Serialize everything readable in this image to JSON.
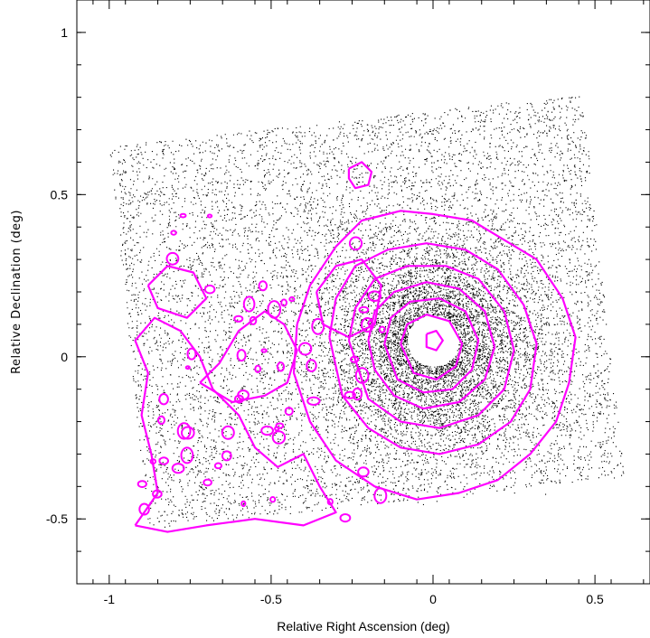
{
  "chart_data": {
    "type": "scatter",
    "title": "",
    "xlabel": "Relative Right Ascension (deg)",
    "ylabel": "Relative Declination (deg)",
    "xlim": [
      1.1,
      -0.67
    ],
    "ylim": [
      -0.7,
      1.1
    ],
    "x_ticks": [
      {
        "value": 1,
        "label": "-1"
      },
      {
        "value": 0.5,
        "label": "-0.5"
      },
      {
        "value": 0,
        "label": "0"
      },
      {
        "value": -0.5,
        "label": "0.5"
      }
    ],
    "y_ticks": [
      {
        "value": 1,
        "label": "1"
      },
      {
        "value": 0.5,
        "label": "0.5"
      },
      {
        "value": 0,
        "label": "0"
      },
      {
        "value": -0.5,
        "label": "-0.5"
      }
    ],
    "grid": false,
    "point_color": "#000000",
    "contour_color": "#ff00ff",
    "field_corners": [
      [
        1.0,
        0.65
      ],
      [
        -0.46,
        0.81
      ],
      [
        -0.59,
        -0.37
      ],
      [
        0.88,
        -0.53
      ]
    ],
    "cluster_center": [
      0.0,
      0.05
    ],
    "contours": [
      {
        "level": "outer-west-1",
        "points": [
          [
            0.92,
            -0.52
          ],
          [
            0.85,
            -0.42
          ],
          [
            0.87,
            -0.3
          ],
          [
            0.9,
            -0.18
          ],
          [
            0.88,
            -0.05
          ],
          [
            0.92,
            0.05
          ],
          [
            0.86,
            0.12
          ],
          [
            0.78,
            0.08
          ],
          [
            0.72,
            0.0
          ],
          [
            0.68,
            -0.1
          ],
          [
            0.6,
            -0.18
          ],
          [
            0.55,
            -0.28
          ],
          [
            0.48,
            -0.34
          ],
          [
            0.4,
            -0.3
          ],
          [
            0.35,
            -0.4
          ],
          [
            0.3,
            -0.48
          ],
          [
            0.4,
            -0.52
          ],
          [
            0.55,
            -0.5
          ],
          [
            0.7,
            -0.52
          ],
          [
            0.82,
            -0.54
          ],
          [
            0.92,
            -0.52
          ]
        ]
      },
      {
        "level": "outer-west-2",
        "points": [
          [
            0.72,
            -0.08
          ],
          [
            0.66,
            -0.02
          ],
          [
            0.6,
            0.08
          ],
          [
            0.52,
            0.14
          ],
          [
            0.46,
            0.1
          ],
          [
            0.42,
            0.02
          ],
          [
            0.45,
            -0.08
          ],
          [
            0.52,
            -0.12
          ],
          [
            0.62,
            -0.14
          ],
          [
            0.72,
            -0.08
          ]
        ]
      },
      {
        "level": "outer-west-3",
        "points": [
          [
            0.88,
            0.22
          ],
          [
            0.82,
            0.28
          ],
          [
            0.74,
            0.26
          ],
          [
            0.7,
            0.18
          ],
          [
            0.76,
            0.12
          ],
          [
            0.85,
            0.15
          ],
          [
            0.88,
            0.22
          ]
        ]
      },
      {
        "level": "outer-west-4",
        "points": [
          [
            0.36,
            0.2
          ],
          [
            0.3,
            0.28
          ],
          [
            0.22,
            0.3
          ],
          [
            0.16,
            0.22
          ],
          [
            0.18,
            0.1
          ],
          [
            0.26,
            0.06
          ],
          [
            0.34,
            0.1
          ],
          [
            0.36,
            0.2
          ]
        ]
      },
      {
        "level": "outer-1",
        "points": [
          [
            0.42,
            0.1
          ],
          [
            0.38,
            0.22
          ],
          [
            0.3,
            0.34
          ],
          [
            0.22,
            0.42
          ],
          [
            0.1,
            0.45
          ],
          [
            0.0,
            0.44
          ],
          [
            -0.12,
            0.42
          ],
          [
            -0.22,
            0.36
          ],
          [
            -0.32,
            0.3
          ],
          [
            -0.4,
            0.18
          ],
          [
            -0.44,
            0.06
          ],
          [
            -0.42,
            -0.08
          ],
          [
            -0.38,
            -0.2
          ],
          [
            -0.3,
            -0.3
          ],
          [
            -0.2,
            -0.38
          ],
          [
            -0.08,
            -0.42
          ],
          [
            0.05,
            -0.44
          ],
          [
            0.18,
            -0.4
          ],
          [
            0.3,
            -0.32
          ],
          [
            0.38,
            -0.2
          ],
          [
            0.43,
            -0.05
          ],
          [
            0.42,
            0.1
          ]
        ]
      },
      {
        "level": "outer-2",
        "points": [
          [
            0.32,
            0.06
          ],
          [
            0.3,
            0.18
          ],
          [
            0.24,
            0.28
          ],
          [
            0.14,
            0.33
          ],
          [
            0.02,
            0.35
          ],
          [
            -0.1,
            0.33
          ],
          [
            -0.2,
            0.27
          ],
          [
            -0.28,
            0.16
          ],
          [
            -0.32,
            0.04
          ],
          [
            -0.3,
            -0.1
          ],
          [
            -0.24,
            -0.2
          ],
          [
            -0.14,
            -0.27
          ],
          [
            -0.02,
            -0.3
          ],
          [
            0.1,
            -0.28
          ],
          [
            0.2,
            -0.22
          ],
          [
            0.28,
            -0.12
          ],
          [
            0.32,
            0.06
          ]
        ]
      },
      {
        "level": "mid-1",
        "points": [
          [
            0.26,
            0.05
          ],
          [
            0.24,
            0.15
          ],
          [
            0.18,
            0.24
          ],
          [
            0.08,
            0.28
          ],
          [
            -0.04,
            0.28
          ],
          [
            -0.14,
            0.24
          ],
          [
            -0.22,
            0.14
          ],
          [
            -0.25,
            0.02
          ],
          [
            -0.22,
            -0.1
          ],
          [
            -0.14,
            -0.18
          ],
          [
            -0.02,
            -0.22
          ],
          [
            0.1,
            -0.2
          ],
          [
            0.2,
            -0.13
          ],
          [
            0.26,
            0.05
          ]
        ]
      },
      {
        "level": "mid-2",
        "points": [
          [
            0.2,
            0.05
          ],
          [
            0.18,
            0.14
          ],
          [
            0.12,
            0.2
          ],
          [
            0.02,
            0.23
          ],
          [
            -0.08,
            0.21
          ],
          [
            -0.16,
            0.14
          ],
          [
            -0.19,
            0.03
          ],
          [
            -0.16,
            -0.07
          ],
          [
            -0.08,
            -0.14
          ],
          [
            0.03,
            -0.16
          ],
          [
            0.12,
            -0.12
          ],
          [
            0.18,
            -0.04
          ],
          [
            0.2,
            0.05
          ]
        ]
      },
      {
        "level": "inner-1",
        "points": [
          [
            0.15,
            0.04
          ],
          [
            0.13,
            0.12
          ],
          [
            0.07,
            0.17
          ],
          [
            -0.02,
            0.18
          ],
          [
            -0.1,
            0.14
          ],
          [
            -0.14,
            0.05
          ],
          [
            -0.12,
            -0.04
          ],
          [
            -0.06,
            -0.1
          ],
          [
            0.03,
            -0.11
          ],
          [
            0.11,
            -0.07
          ],
          [
            0.15,
            0.04
          ]
        ]
      },
      {
        "level": "inner-2",
        "points": [
          [
            0.1,
            0.04
          ],
          [
            0.08,
            0.1
          ],
          [
            0.02,
            0.13
          ],
          [
            -0.05,
            0.11
          ],
          [
            -0.09,
            0.04
          ],
          [
            -0.07,
            -0.03
          ],
          [
            -0.01,
            -0.07
          ],
          [
            0.06,
            -0.05
          ],
          [
            0.1,
            0.04
          ]
        ]
      },
      {
        "level": "core",
        "points": [
          [
            0.02,
            0.07
          ],
          [
            -0.01,
            0.08
          ],
          [
            -0.03,
            0.05
          ],
          [
            -0.01,
            0.02
          ],
          [
            0.02,
            0.03
          ],
          [
            0.02,
            0.07
          ]
        ]
      },
      {
        "level": "north-blob",
        "points": [
          [
            0.26,
            0.58
          ],
          [
            0.22,
            0.6
          ],
          [
            0.19,
            0.57
          ],
          [
            0.2,
            0.53
          ],
          [
            0.24,
            0.52
          ],
          [
            0.26,
            0.55
          ],
          [
            0.26,
            0.58
          ]
        ]
      }
    ]
  }
}
